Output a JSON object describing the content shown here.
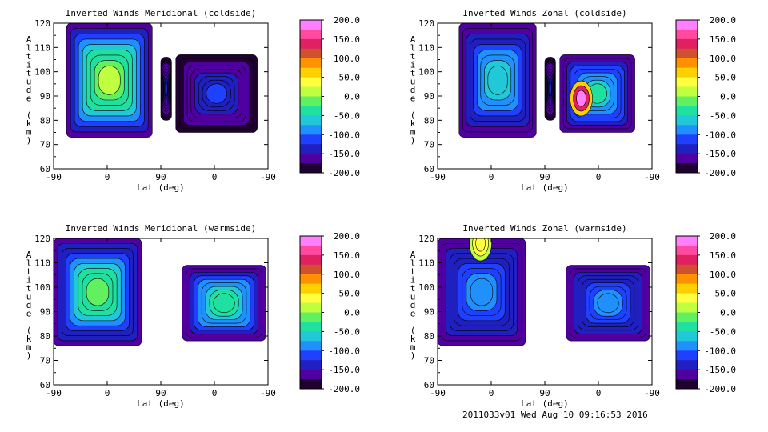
{
  "footer": "2011033v01 Wed Aug 10 09:16:53 2016",
  "colorbar": {
    "ticks": [
      "200.0",
      "150.0",
      "100.0",
      "50.0",
      "0.0",
      "-50.0",
      "-100.0",
      "-150.0",
      "-200.0"
    ],
    "stops": [
      "#ff80ff",
      "#ff4aa0",
      "#e02060",
      "#d05030",
      "#ff9000",
      "#ffd000",
      "#ffff40",
      "#c0ff40",
      "#60f060",
      "#20e0a0",
      "#20c8d8",
      "#2090ff",
      "#2040ff",
      "#2020c0",
      "#5000a0",
      "#200030"
    ]
  },
  "chart_data": [
    {
      "type": "heatmap",
      "title": "Inverted Winds Meridional (coldside)",
      "xlabel": "Lat (deg)",
      "ylabel": [
        "A",
        "l",
        "t",
        "i",
        "t",
        "u",
        "d",
        "e",
        "",
        "(",
        "k",
        "m",
        ")"
      ],
      "xticks": [
        "-90",
        "0",
        "90",
        "0",
        "-90"
      ],
      "yticks": [
        "60",
        "70",
        "80",
        "90",
        "100",
        "110",
        "120"
      ],
      "ylim": [
        60,
        120
      ],
      "zlim": [
        -200,
        200
      ],
      "regions": [
        {
          "lat_range": [
            0.06,
            0.46
          ],
          "alt_range": [
            73,
            120
          ],
          "center_value": 40,
          "edge_value": -160
        },
        {
          "lat_range": [
            0.5,
            0.55
          ],
          "alt_range": [
            80,
            106
          ],
          "center_value": -120,
          "edge_value": -190
        },
        {
          "lat_range": [
            0.57,
            0.95
          ],
          "alt_range": [
            75,
            107
          ],
          "center_value": -110,
          "edge_value": -190
        }
      ]
    },
    {
      "type": "heatmap",
      "title": "Inverted Winds Zonal (coldside)",
      "xlabel": "Lat (deg)",
      "ylabel": [
        "A",
        "l",
        "t",
        "i",
        "t",
        "u",
        "d",
        "e",
        "",
        "(",
        "k",
        "m",
        ")"
      ],
      "xticks": [
        "-90",
        "0",
        "90",
        "0",
        "-90"
      ],
      "yticks": [
        "60",
        "70",
        "80",
        "90",
        "100",
        "110",
        "120"
      ],
      "ylim": [
        60,
        120
      ],
      "zlim": [
        -200,
        200
      ],
      "regions": [
        {
          "lat_range": [
            0.1,
            0.46
          ],
          "alt_range": [
            73,
            120
          ],
          "center_value": -40,
          "edge_value": -170
        },
        {
          "lat_range": [
            0.5,
            0.55
          ],
          "alt_range": [
            80,
            106
          ],
          "center_value": -120,
          "edge_value": -190
        },
        {
          "lat_range": [
            0.57,
            0.92
          ],
          "alt_range": [
            75,
            107
          ],
          "center_value": -30,
          "edge_value": -170
        }
      ],
      "peak": {
        "lat_frac": 0.67,
        "alt": 89,
        "value": 180
      }
    },
    {
      "type": "heatmap",
      "title": "Inverted Winds Meridional (warmside)",
      "xlabel": "Lat (deg)",
      "ylabel": [
        "A",
        "l",
        "t",
        "i",
        "t",
        "u",
        "d",
        "e",
        "",
        "(",
        "k",
        "m",
        ")"
      ],
      "xticks": [
        "-90",
        "0",
        "90",
        "0",
        "-90"
      ],
      "yticks": [
        "60",
        "70",
        "80",
        "90",
        "100",
        "110",
        "120"
      ],
      "ylim": [
        60,
        120
      ],
      "zlim": [
        -200,
        200
      ],
      "regions": [
        {
          "lat_range": [
            0.0,
            0.41
          ],
          "alt_range": [
            76,
            120
          ],
          "center_value": 10,
          "edge_value": -170
        },
        {
          "lat_range": [
            0.6,
            0.99
          ],
          "alt_range": [
            78,
            109
          ],
          "center_value": -10,
          "edge_value": -170
        }
      ]
    },
    {
      "type": "heatmap",
      "title": "Inverted Winds Zonal (warmside)",
      "xlabel": "Lat (deg)",
      "ylabel": [
        "A",
        "l",
        "t",
        "i",
        "t",
        "u",
        "d",
        "e",
        "",
        "(",
        "k",
        "m",
        ")"
      ],
      "xticks": [
        "-90",
        "0",
        "90",
        "0",
        "-90"
      ],
      "yticks": [
        "60",
        "70",
        "80",
        "90",
        "100",
        "110",
        "120"
      ],
      "ylim": [
        60,
        120
      ],
      "zlim": [
        -200,
        200
      ],
      "regions": [
        {
          "lat_range": [
            0.0,
            0.41
          ],
          "alt_range": [
            76,
            120
          ],
          "center_value": -70,
          "edge_value": -170
        },
        {
          "lat_range": [
            0.6,
            0.99
          ],
          "alt_range": [
            78,
            109
          ],
          "center_value": -80,
          "edge_value": -170
        }
      ],
      "peak": {
        "lat_frac": 0.2,
        "alt": 118,
        "value": 40
      }
    }
  ]
}
